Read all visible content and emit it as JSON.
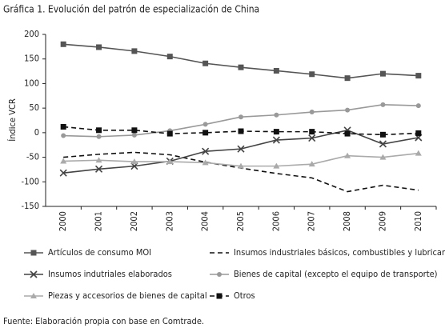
{
  "chart_data": {
    "type": "line",
    "title": "Gráfica 1. Evolución del patrón de especialización de China",
    "y_label": "Índice VCR",
    "source": "Fuente: Elaboración propia con base en Comtrade.",
    "categories": [
      "2000",
      "2001",
      "2002",
      "2003",
      "2004",
      "2005",
      "2006",
      "2007",
      "2008",
      "2009",
      "2010"
    ],
    "ylim": [
      -150,
      200
    ],
    "yticks": [
      -150,
      -100,
      -50,
      0,
      50,
      100,
      150,
      200
    ],
    "series": [
      {
        "name": "Artículos de consumo MOI",
        "color": "#555555",
        "line_style": "solid",
        "marker": "square",
        "values": [
          180,
          174,
          166,
          155,
          141,
          133,
          126,
          119,
          111,
          120,
          116
        ]
      },
      {
        "name": "Insumos industriales básicos, combustibles y lubricantes",
        "color": "#111111",
        "line_style": "dashed",
        "marker": "none",
        "values": [
          -50,
          -44,
          -40,
          -45,
          -60,
          -72,
          -83,
          -92,
          -120,
          -107,
          -117
        ]
      },
      {
        "name": "Insumos indutriales elaborados",
        "color": "#444444",
        "line_style": "solid",
        "marker": "x",
        "values": [
          -82,
          -74,
          -68,
          -58,
          -38,
          -33,
          -15,
          -11,
          5,
          -23,
          -10
        ]
      },
      {
        "name": "Bienes de capital (excepto el equipo de transporte)",
        "color": "#999999",
        "line_style": "solid",
        "marker": "circle",
        "values": [
          -6,
          -8,
          -5,
          4,
          17,
          32,
          36,
          42,
          46,
          57,
          55
        ]
      },
      {
        "name": "Piezas y accesorios de bienes de capital",
        "color": "#aaaaaa",
        "line_style": "solid",
        "marker": "triangle",
        "values": [
          -58,
          -56,
          -59,
          -59,
          -61,
          -68,
          -68,
          -64,
          -47,
          -50,
          -42
        ]
      },
      {
        "name": "Otros",
        "color": "#111111",
        "line_style": "dashed",
        "marker": "square",
        "values": [
          12,
          5,
          5,
          -2,
          0,
          3,
          2,
          2,
          -2,
          -4,
          -1
        ]
      }
    ]
  }
}
